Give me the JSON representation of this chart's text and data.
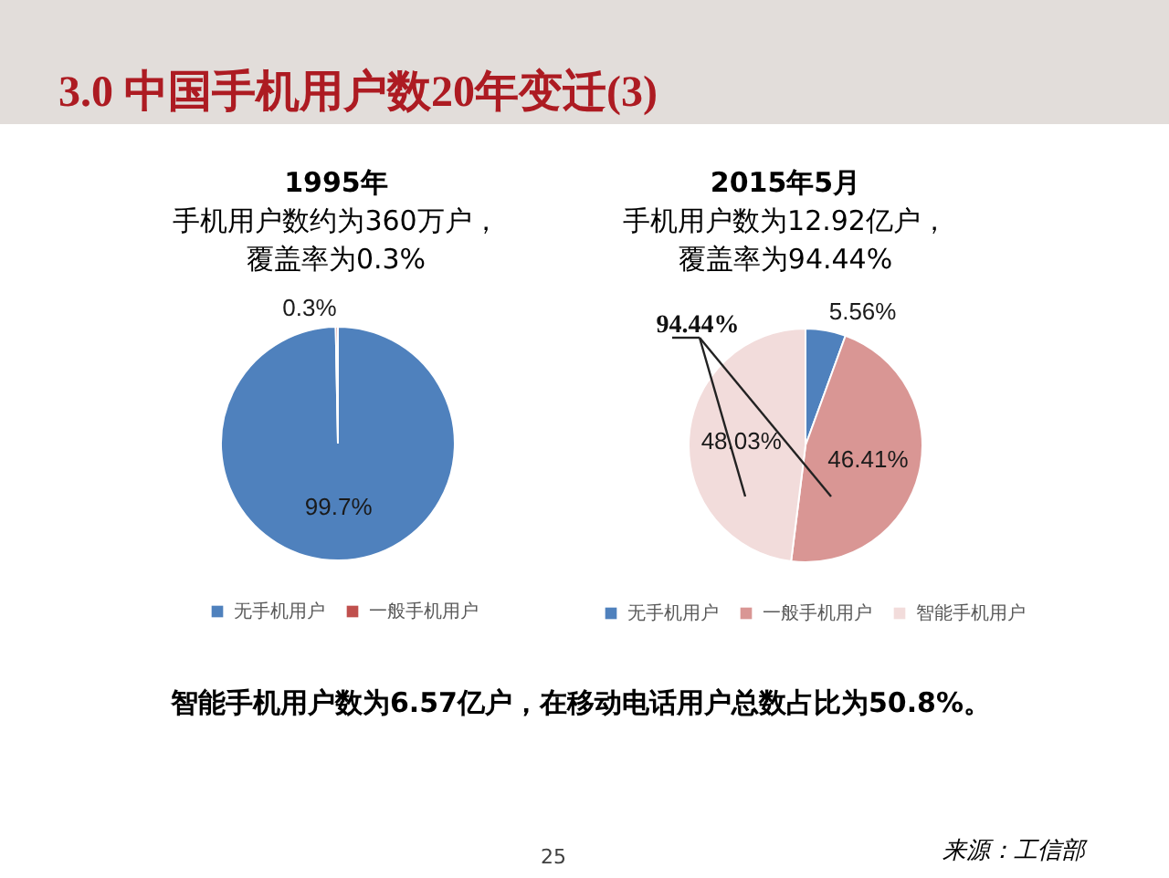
{
  "chart_data": [
    {
      "type": "other",
      "title": "3.0 中国手机用户数20年变迁(3)"
    },
    {
      "type": "pie",
      "title": "1995年",
      "subtitle": "手机用户数约为360万户，覆盖率为0.3%",
      "categories": [
        "无手机用户",
        "一般手机用户"
      ],
      "values": [
        99.7,
        0.3
      ],
      "colors": [
        "#4f81bd",
        "#c0504d"
      ],
      "value_labels": [
        "99.7%",
        "0.3%"
      ],
      "legend": "bottom"
    },
    {
      "type": "pie",
      "title": "2015年5月",
      "subtitle": "手机用户数为12.92亿户，覆盖率为94.44%",
      "categories": [
        "无手机用户",
        "一般手机用户",
        "智能手机用户"
      ],
      "values": [
        5.56,
        46.41,
        48.03
      ],
      "colors": [
        "#4f81bd",
        "#d99694",
        "#f2dcdb"
      ],
      "value_labels": [
        "5.56%",
        "46.41%",
        "48.03%"
      ],
      "annotations": [
        "94.44%"
      ],
      "legend": "bottom"
    },
    {
      "type": "other",
      "annotations": [
        "智能手机用户数为6.57亿户，在移动电话用户总数占比为50.8%。",
        "25",
        "来源：工信部"
      ]
    }
  ]
}
